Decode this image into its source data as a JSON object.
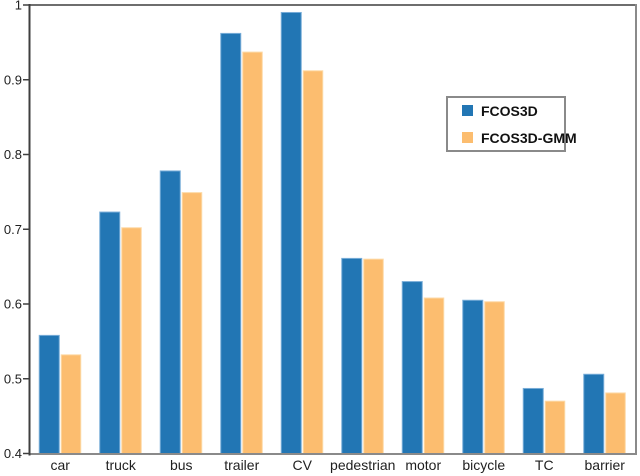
{
  "chart_data": {
    "type": "bar",
    "title": "",
    "xlabel": "",
    "ylabel": "",
    "categories": [
      "car",
      "truck",
      "bus",
      "trailer",
      "CV",
      "pedestrian",
      "motor",
      "bicycle",
      "TC",
      "barrier"
    ],
    "series": [
      {
        "name": "FCOS3D",
        "color": "#2276b4",
        "edge_color": "#79add8",
        "values": [
          0.558,
          0.723,
          0.778,
          0.962,
          0.99,
          0.661,
          0.63,
          0.605,
          0.487,
          0.506
        ]
      },
      {
        "name": "FCOS3D-GMM",
        "color": "#fcbd6f",
        "edge_color": "#fdd9a6",
        "values": [
          0.532,
          0.702,
          0.749,
          0.937,
          0.912,
          0.66,
          0.608,
          0.603,
          0.47,
          0.481
        ]
      }
    ],
    "ylim": [
      0.4,
      1.0
    ],
    "y_ticks": [
      {
        "label": "1",
        "value": 1.0
      },
      {
        "label": "0.9",
        "value": 0.9
      },
      {
        "label": "0.8",
        "value": 0.8
      },
      {
        "label": "0.7",
        "value": 0.7
      },
      {
        "label": "0.6",
        "value": 0.6
      },
      {
        "label": "0.5",
        "value": 0.5
      },
      {
        "label": "0.4",
        "value": 0.4
      }
    ],
    "grid": false,
    "legend_position": "center-right"
  },
  "colors": {
    "background": "#ffffff",
    "frame_top": "#6e6e6e",
    "frame_right": "#8a8a8a",
    "frame_bottom": "#8a8a8a",
    "y_axis": "#3f3f3f",
    "tick_mark": "#3f3f3f",
    "tick_text": "#1f1f1f",
    "legend_border": "#8a8a8a"
  }
}
